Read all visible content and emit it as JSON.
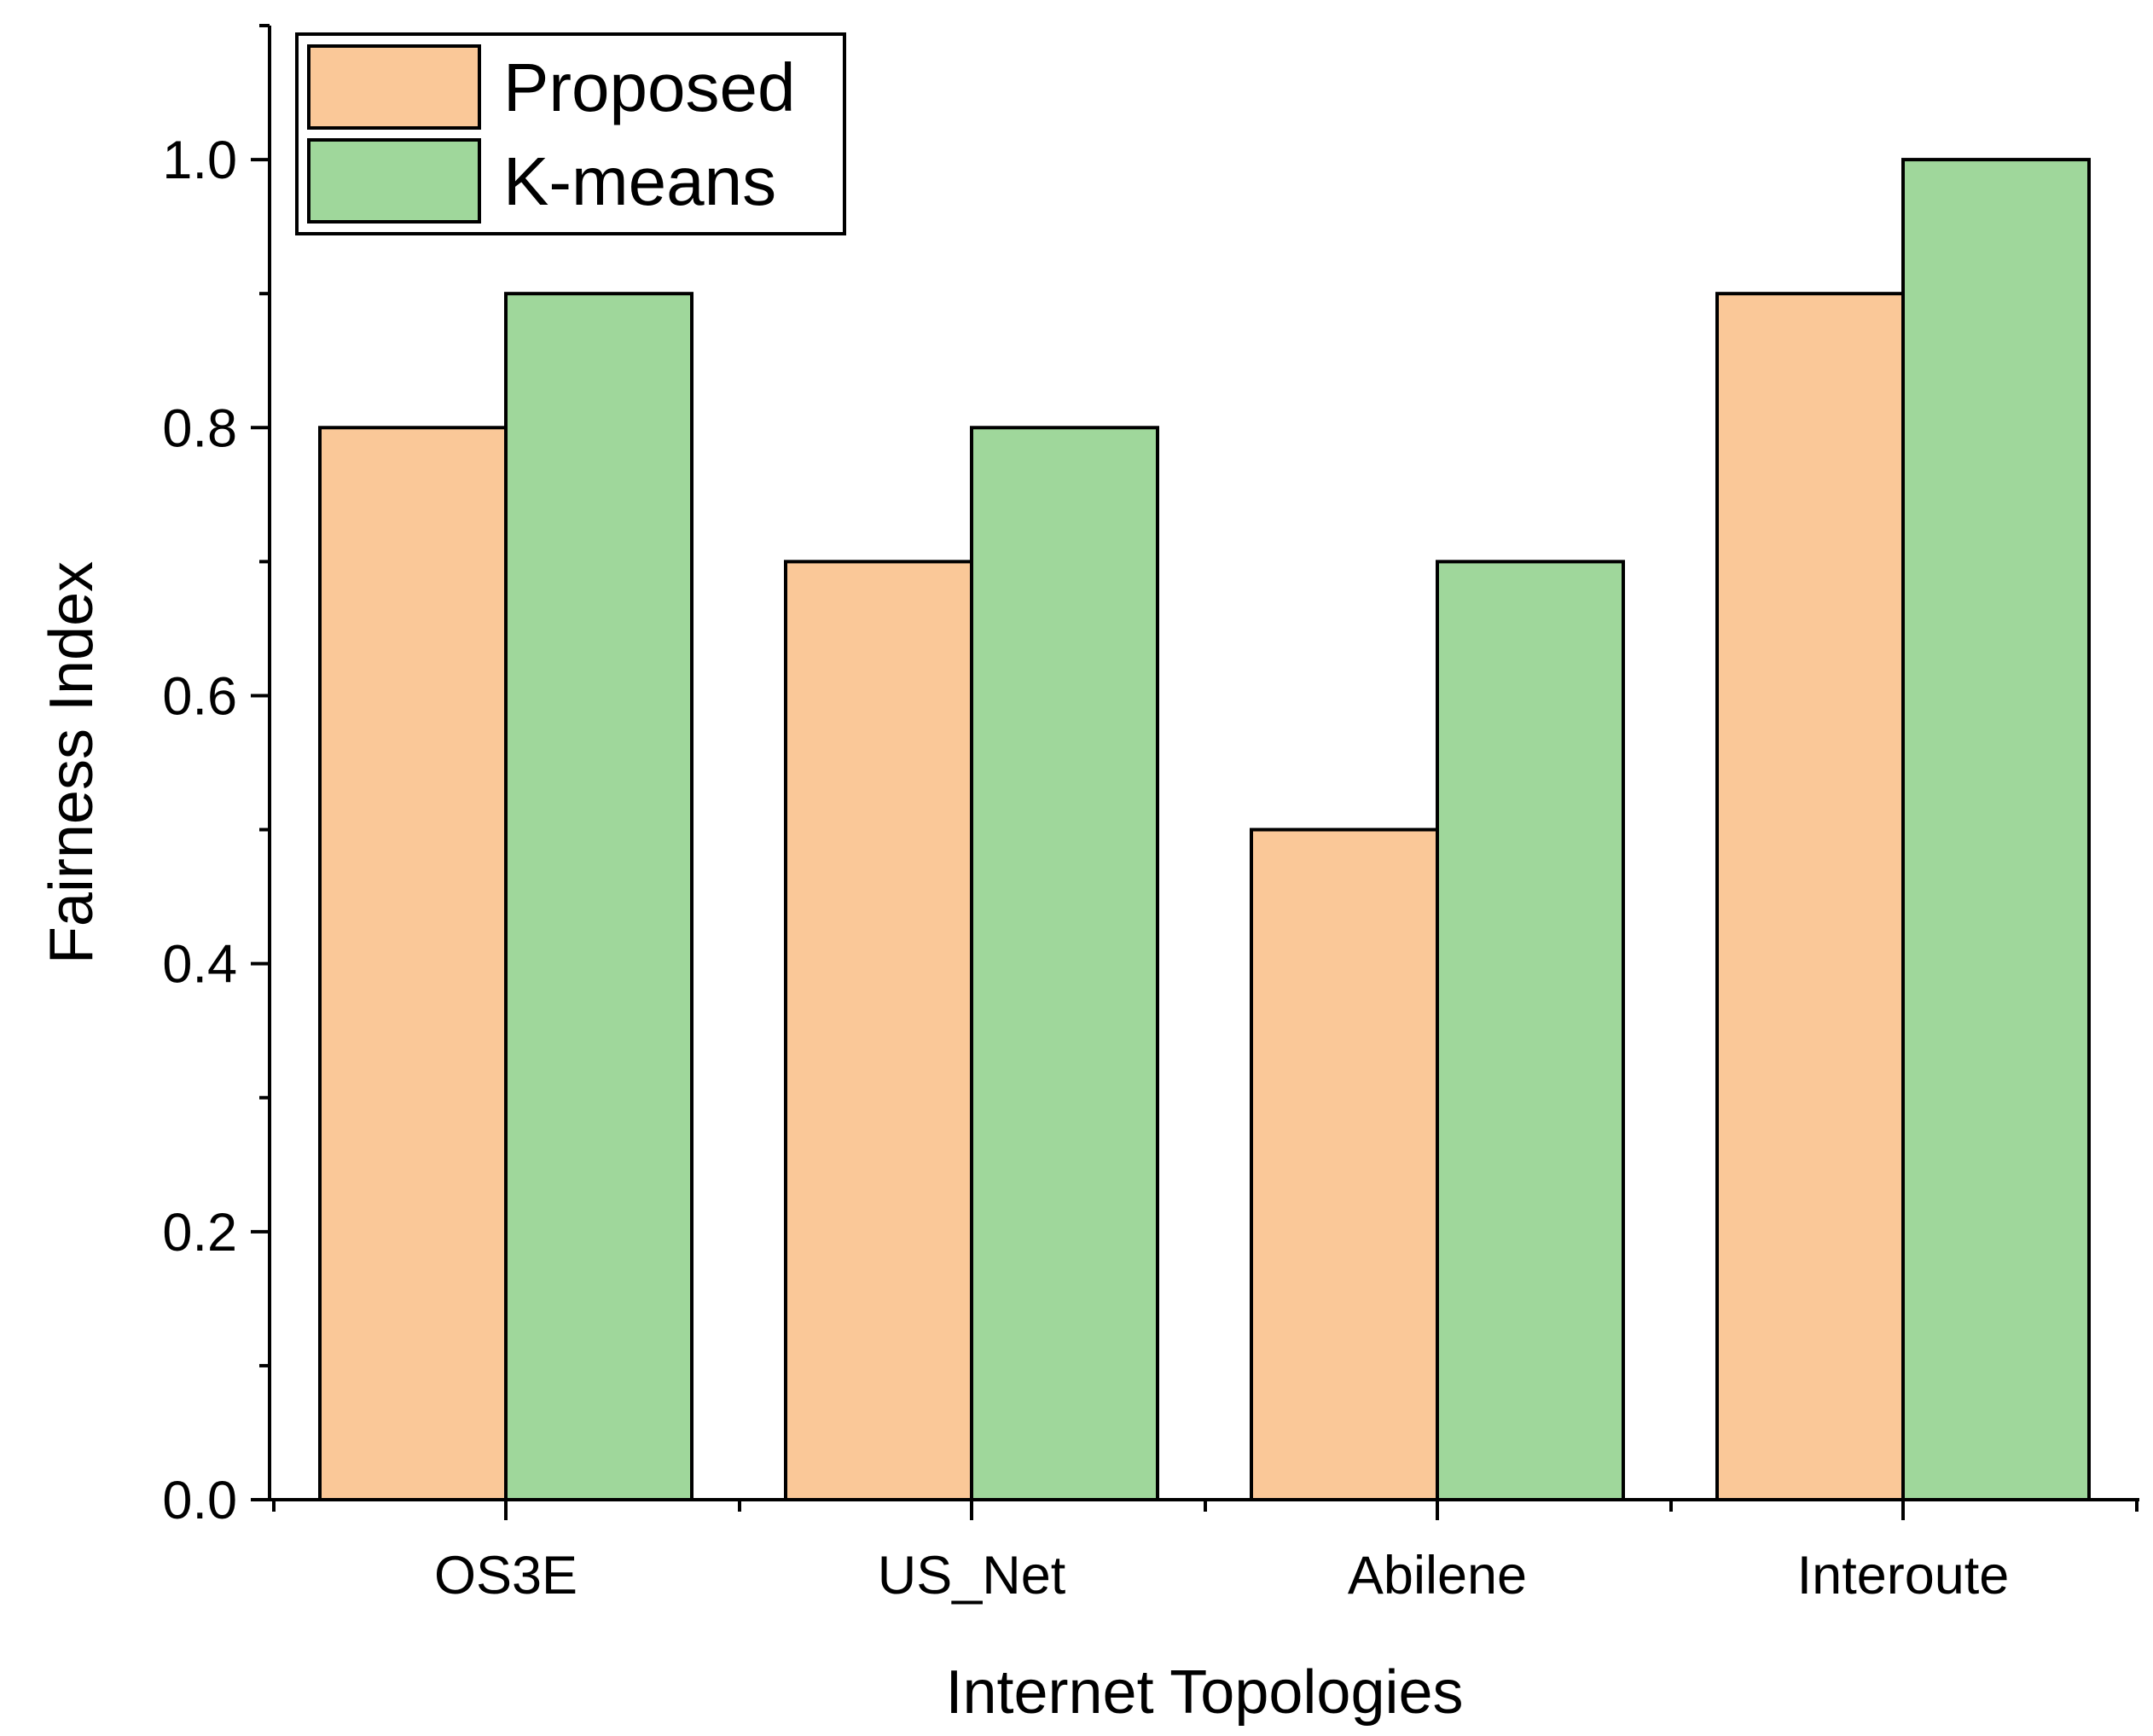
{
  "chart_data": {
    "type": "bar",
    "title": "",
    "xlabel": "Internet Topologies",
    "ylabel": "Fairness Index",
    "categories": [
      "OS3E",
      "US_Net",
      "Abilene",
      "Interoute"
    ],
    "series": [
      {
        "name": "Proposed",
        "values": [
          0.8,
          0.7,
          0.5,
          0.9
        ],
        "color": "#FAC898"
      },
      {
        "name": "K-means",
        "values": [
          0.9,
          0.8,
          0.7,
          1.0
        ],
        "color": "#9FD79B"
      }
    ],
    "ylim": [
      0,
      1.1
    ],
    "yticks": [
      "0.0",
      "0.2",
      "0.4",
      "0.6",
      "0.8",
      "1.0"
    ],
    "grid": false,
    "legend_position": "top-left"
  }
}
